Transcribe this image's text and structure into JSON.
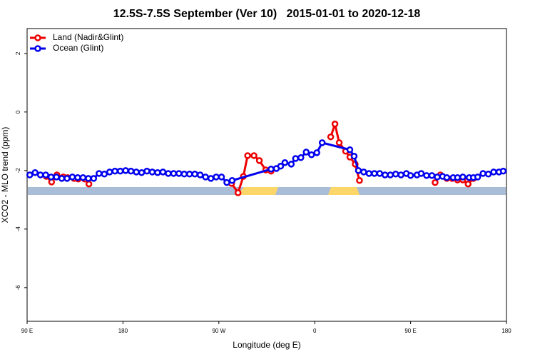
{
  "chart_data": {
    "type": "line",
    "title": "12.5S-7.5S September (Ver 10)   2015-01-01 to 2020-12-18",
    "x_label": "Longitude (deg E)",
    "y_label": "XCO2 - MLO trend (ppm)",
    "xlim": [
      90,
      540
    ],
    "ylim": [
      -7.15,
      2.85
    ],
    "xticks": [
      {
        "value": 90,
        "label": "90 E"
      },
      180,
      {
        "value": 270,
        "label": "90 W"
      },
      {
        "value": 360,
        "label": "0"
      },
      {
        "value": 450,
        "label": "90 E"
      },
      {
        "value": 540,
        "label": "180"
      }
    ],
    "yticks": [
      -6,
      -4,
      -2,
      0,
      2
    ],
    "legend": "top-left",
    "series": [
      {
        "name": "Land (Nadir&Glint)",
        "color": "#ee0000",
        "x": [
          108,
          113,
          118,
          124,
          128,
          134,
          138,
          144,
          148,
          200,
          282,
          288,
          293,
          297,
          303,
          308,
          314,
          319,
          350,
          375,
          379,
          383,
          389,
          393,
          398,
          402,
          440,
          473,
          478,
          484,
          489,
          494,
          499,
          504,
          509
        ],
        "values": [
          -2.2,
          -2.39,
          -2.15,
          -2.22,
          -2.24,
          -2.27,
          -2.29,
          -2.29,
          -2.46,
          null,
          -2.44,
          -2.76,
          -2.2,
          -1.49,
          -1.49,
          -1.66,
          -1.98,
          -2.02,
          null,
          -0.85,
          -0.41,
          -1.05,
          -1.34,
          -1.54,
          -1.78,
          -2.34,
          null,
          -2.41,
          -2.15,
          -2.27,
          -2.27,
          -2.32,
          -2.32,
          -2.46,
          -2.27
        ]
      },
      {
        "name": "Ocean (Glint)",
        "color": "#0000ee",
        "x": [
          92.5,
          97.5,
          102.5,
          107.5,
          112.5,
          117.5,
          122.5,
          127.5,
          132.5,
          137.5,
          142.5,
          147.5,
          152.5,
          157.5,
          162.5,
          167.5,
          172.5,
          177.5,
          182.5,
          187.5,
          192.5,
          197.5,
          202.5,
          207.5,
          212.5,
          217.5,
          222.5,
          227.5,
          232.5,
          237.5,
          242.5,
          247.5,
          252.5,
          257.5,
          262.5,
          267.5,
          272.5,
          277.5,
          282.5,
          319,
          324,
          328,
          332,
          338,
          342,
          347,
          352,
          357,
          362,
          367,
          393,
          397,
          401,
          406,
          411,
          416,
          421,
          426,
          431,
          436,
          441,
          446,
          450,
          456,
          460,
          465,
          470,
          475,
          480,
          484,
          490,
          494,
          499,
          505,
          509,
          513,
          518,
          523,
          528,
          533,
          537
        ],
        "values": [
          -2.15,
          -2.07,
          -2.15,
          -2.15,
          -2.22,
          -2.22,
          -2.27,
          -2.27,
          -2.22,
          -2.24,
          -2.24,
          -2.27,
          -2.27,
          -2.1,
          -2.12,
          -2.05,
          -2.02,
          -2.02,
          -2.0,
          -2.02,
          -2.05,
          -2.07,
          -2.02,
          -2.05,
          -2.07,
          -2.05,
          -2.1,
          -2.1,
          -2.1,
          -2.12,
          -2.12,
          -2.12,
          -2.15,
          -2.22,
          -2.27,
          -2.22,
          -2.22,
          -2.41,
          -2.34,
          -1.95,
          -1.93,
          -1.85,
          -1.73,
          -1.78,
          -1.59,
          -1.56,
          -1.37,
          -1.46,
          -1.39,
          -1.05,
          -1.29,
          -1.51,
          -2.0,
          -2.05,
          -2.1,
          -2.1,
          -2.1,
          -2.15,
          -2.15,
          -2.12,
          -2.15,
          -2.1,
          -2.17,
          -2.15,
          -2.1,
          -2.17,
          -2.17,
          -2.22,
          -2.2,
          -2.24,
          -2.24,
          -2.24,
          -2.22,
          -2.24,
          -2.24,
          -2.22,
          -2.1,
          -2.12,
          -2.05,
          -2.05,
          -2.02
        ]
      }
    ]
  }
}
